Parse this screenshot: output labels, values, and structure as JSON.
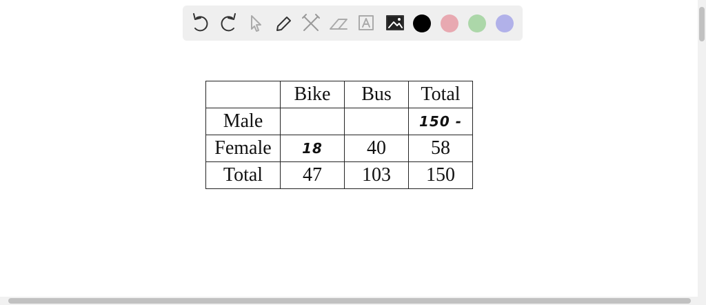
{
  "table": {
    "columns": [
      "Bike",
      "Bus",
      "Total"
    ],
    "rows": [
      {
        "label": "Male",
        "cells": [
          null,
          null,
          "150 -"
        ]
      },
      {
        "label": "Female",
        "cells": [
          18,
          40,
          58
        ]
      },
      {
        "label": "Total",
        "cells": [
          47,
          103,
          150
        ]
      }
    ]
  }
}
